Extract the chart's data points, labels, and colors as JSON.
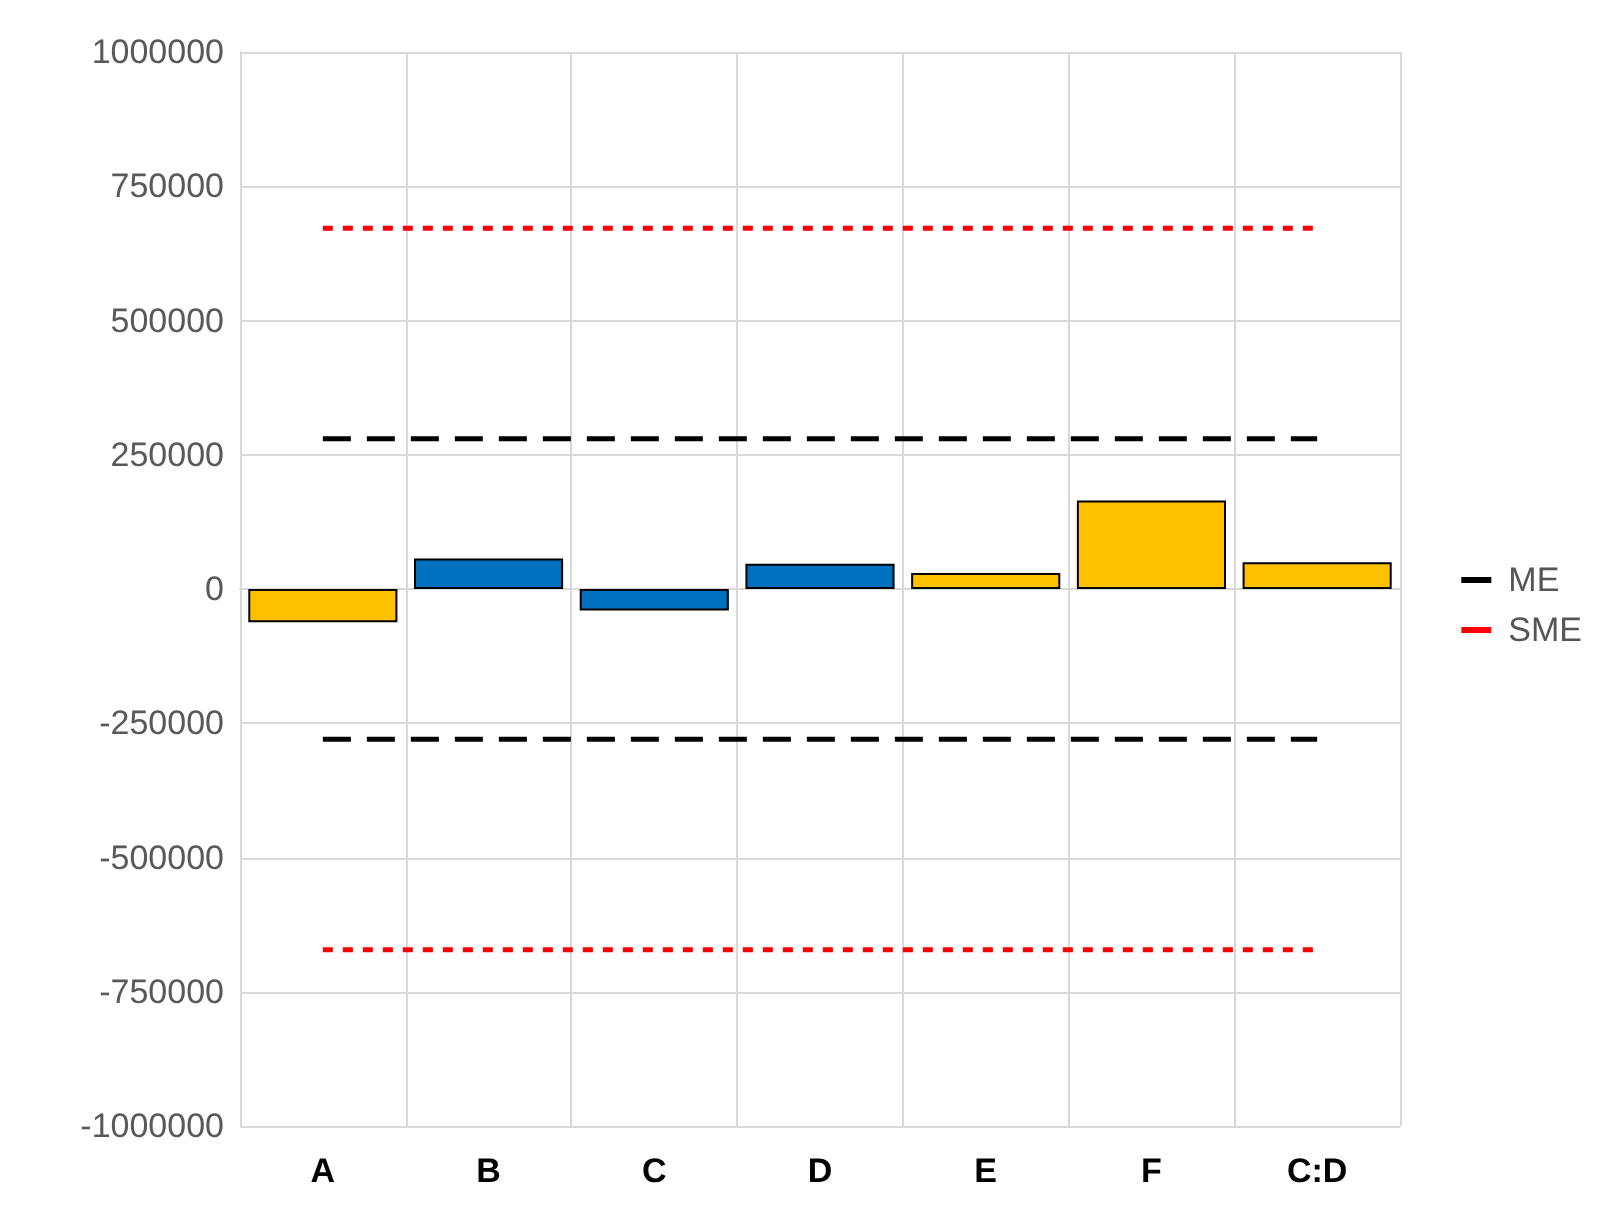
{
  "chart_data": {
    "type": "bar",
    "categories": [
      "A",
      "B",
      "C",
      "D",
      "E",
      "F",
      "C:D"
    ],
    "series": [
      {
        "values": [
          -62000,
          57000,
          -40000,
          47000,
          30000,
          165000,
          50000
        ],
        "colors": [
          "#ffc000",
          "#0070c0",
          "#0070c0",
          "#0070c0",
          "#ffc000",
          "#ffc000",
          "#ffc000"
        ]
      },
      {
        "type": "line",
        "name": "ME",
        "color": "#000000",
        "line_style": "dashed",
        "values": [
          280000,
          280000,
          280000,
          280000,
          280000,
          280000,
          280000
        ]
      },
      {
        "type": "line",
        "color": "#000000",
        "line_style": "dashed",
        "values": [
          -280000,
          -280000,
          -280000,
          -280000,
          -280000,
          -280000,
          -280000
        ]
      },
      {
        "type": "line",
        "name": "SME",
        "color": "#ff0000",
        "line_style": "dotted",
        "values": [
          672000,
          672000,
          672000,
          672000,
          672000,
          672000,
          672000
        ]
      },
      {
        "type": "line",
        "color": "#ff0000",
        "line_style": "dotted",
        "values": [
          -672000,
          -672000,
          -672000,
          -672000,
          -672000,
          -672000,
          -672000
        ]
      }
    ],
    "ylim": [
      -1000000,
      1000000
    ],
    "yticks": [
      -1000000,
      -750000,
      -500000,
      -250000,
      0,
      250000,
      500000,
      750000,
      1000000
    ],
    "grid": true,
    "legend": "right",
    "marker": "none"
  }
}
